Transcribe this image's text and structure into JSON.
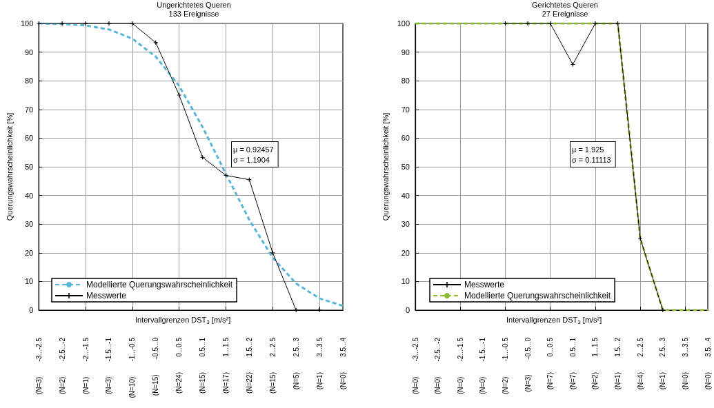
{
  "chart_data": [
    {
      "type": "line",
      "title": "Ungerichtetes Queren",
      "subtitle": "133 Ereignisse",
      "xlabel": "Intervallgrenzen DST$_{3}$ [m/s²]",
      "ylabel": "Querungswahrscheinlichkeit [%]",
      "categories": [
        "(N=3)   -3...-2.5",
        "(N=2)   -2.5...-2",
        "(N=1)   -2...-1.5",
        "(N=3)   -1.5...-1",
        "(N=10)   -1...-0.5",
        "(N=15)   -0.5...0",
        "(N=24)   0...0.5",
        "(N=15)   0.5...1",
        "(N=17)   1...1.5",
        "(N=22)   1.5...2",
        "(N=15)   2...2.5",
        "(N=5)   2.5...3",
        "(N=1)   3...3.5",
        "(N=0)   3.5...4"
      ],
      "series": [
        {
          "name": "Modellierte Querungswahrscheinlichkeit",
          "color": "#5ab4d6",
          "line_style": "dashed",
          "marker": "none",
          "values": [
            100,
            99.8,
            99.3,
            97.9,
            94.7,
            88.4,
            78.2,
            63.9,
            47.5,
            31.5,
            18.3,
            9.3,
            4.1,
            1.5
          ]
        },
        {
          "name": "Messwerte",
          "color": "#000000",
          "line_style": "solid",
          "marker": "cross",
          "values": [
            100,
            100,
            100,
            100,
            100,
            93.3,
            75,
            53.3,
            47,
            45.5,
            20,
            0,
            0,
            null
          ]
        }
      ],
      "ylim": [
        0,
        100
      ],
      "yticks": [
        0,
        10,
        20,
        30,
        40,
        50,
        60,
        70,
        80,
        90,
        100
      ],
      "grid": true,
      "legend": "bottom left",
      "annotations": [
        "μ = 0.92457",
        "σ = 1.1904"
      ]
    },
    {
      "type": "line",
      "title": "Gerichtetes Queren",
      "subtitle": "27 Ereignisse",
      "xlabel": "Intervallgrenzen DST$_{3}$ [m/s²]",
      "ylabel": "Querungswahrscheinlichkeit [%]",
      "categories": [
        "(N=0)   -3...-2.5",
        "(N=0)   -2.5...-2",
        "(N=0)   -2...-1.5",
        "(N=0)   -1.5...-1",
        "(N=2)   -1...-0.5",
        "(N=3)   -0.5...0",
        "(N=7)   0...0.5",
        "(N=7)   0.5...1",
        "(N=2)   1...1.5",
        "(N=1)   1.5...2",
        "(N=4)   2...2.5",
        "(N=1)   2.5...3",
        "(N=0)   3...3.5",
        "(N=0)   3.5...4"
      ],
      "series": [
        {
          "name": "Messwerte",
          "color": "#000000",
          "line_style": "solid",
          "marker": "cross",
          "values": [
            null,
            null,
            null,
            null,
            100,
            100,
            100,
            85.7,
            100,
            100,
            25,
            0,
            null,
            null
          ]
        },
        {
          "name": "Modellierte Querungswahrscheinlichkeit",
          "color": "#8db92e",
          "line_style": "dashed",
          "marker": "none",
          "values": [
            100,
            100,
            100,
            100,
            100,
            100,
            100,
            100,
            100,
            100,
            25,
            0,
            0,
            0
          ]
        }
      ],
      "ylim": [
        0,
        100
      ],
      "yticks": [
        0,
        10,
        20,
        30,
        40,
        50,
        60,
        70,
        80,
        90,
        100
      ],
      "grid": true,
      "legend": "bottom left",
      "annotations": [
        "μ = 1.925",
        "σ = 0.11113"
      ]
    }
  ]
}
